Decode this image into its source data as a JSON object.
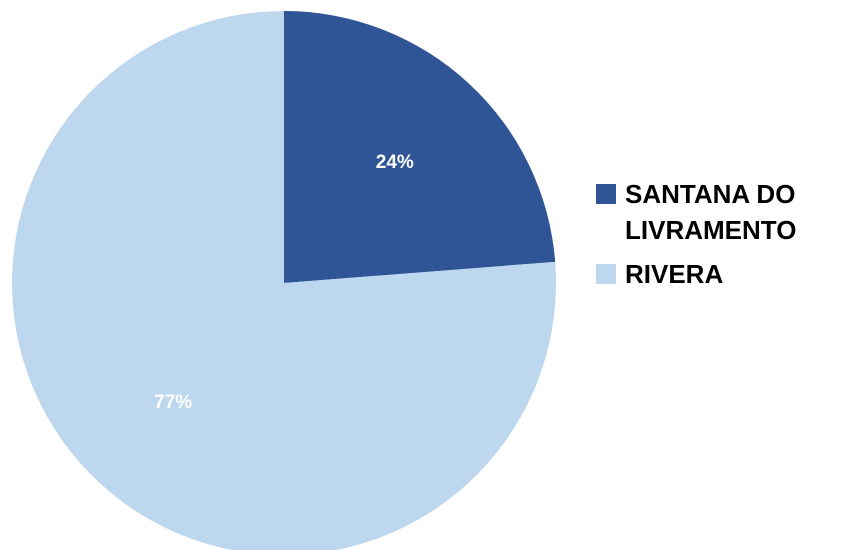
{
  "chart_data": {
    "type": "pie",
    "title": "",
    "categories": [
      "SANTANA DO LIVRAMENTO",
      "RIVERA"
    ],
    "values": [
      24,
      77
    ],
    "labels": [
      "24%",
      "77%"
    ],
    "colors": [
      "#2f5597",
      "#bdd7ee"
    ],
    "legend_position": "right"
  },
  "legend": {
    "items": [
      {
        "label_line1": "SANTANA DO",
        "label_line2": "LIVRAMENTO",
        "color": "#2f5597"
      },
      {
        "label_line1": "RIVERA",
        "color": "#bdd7ee"
      }
    ]
  }
}
